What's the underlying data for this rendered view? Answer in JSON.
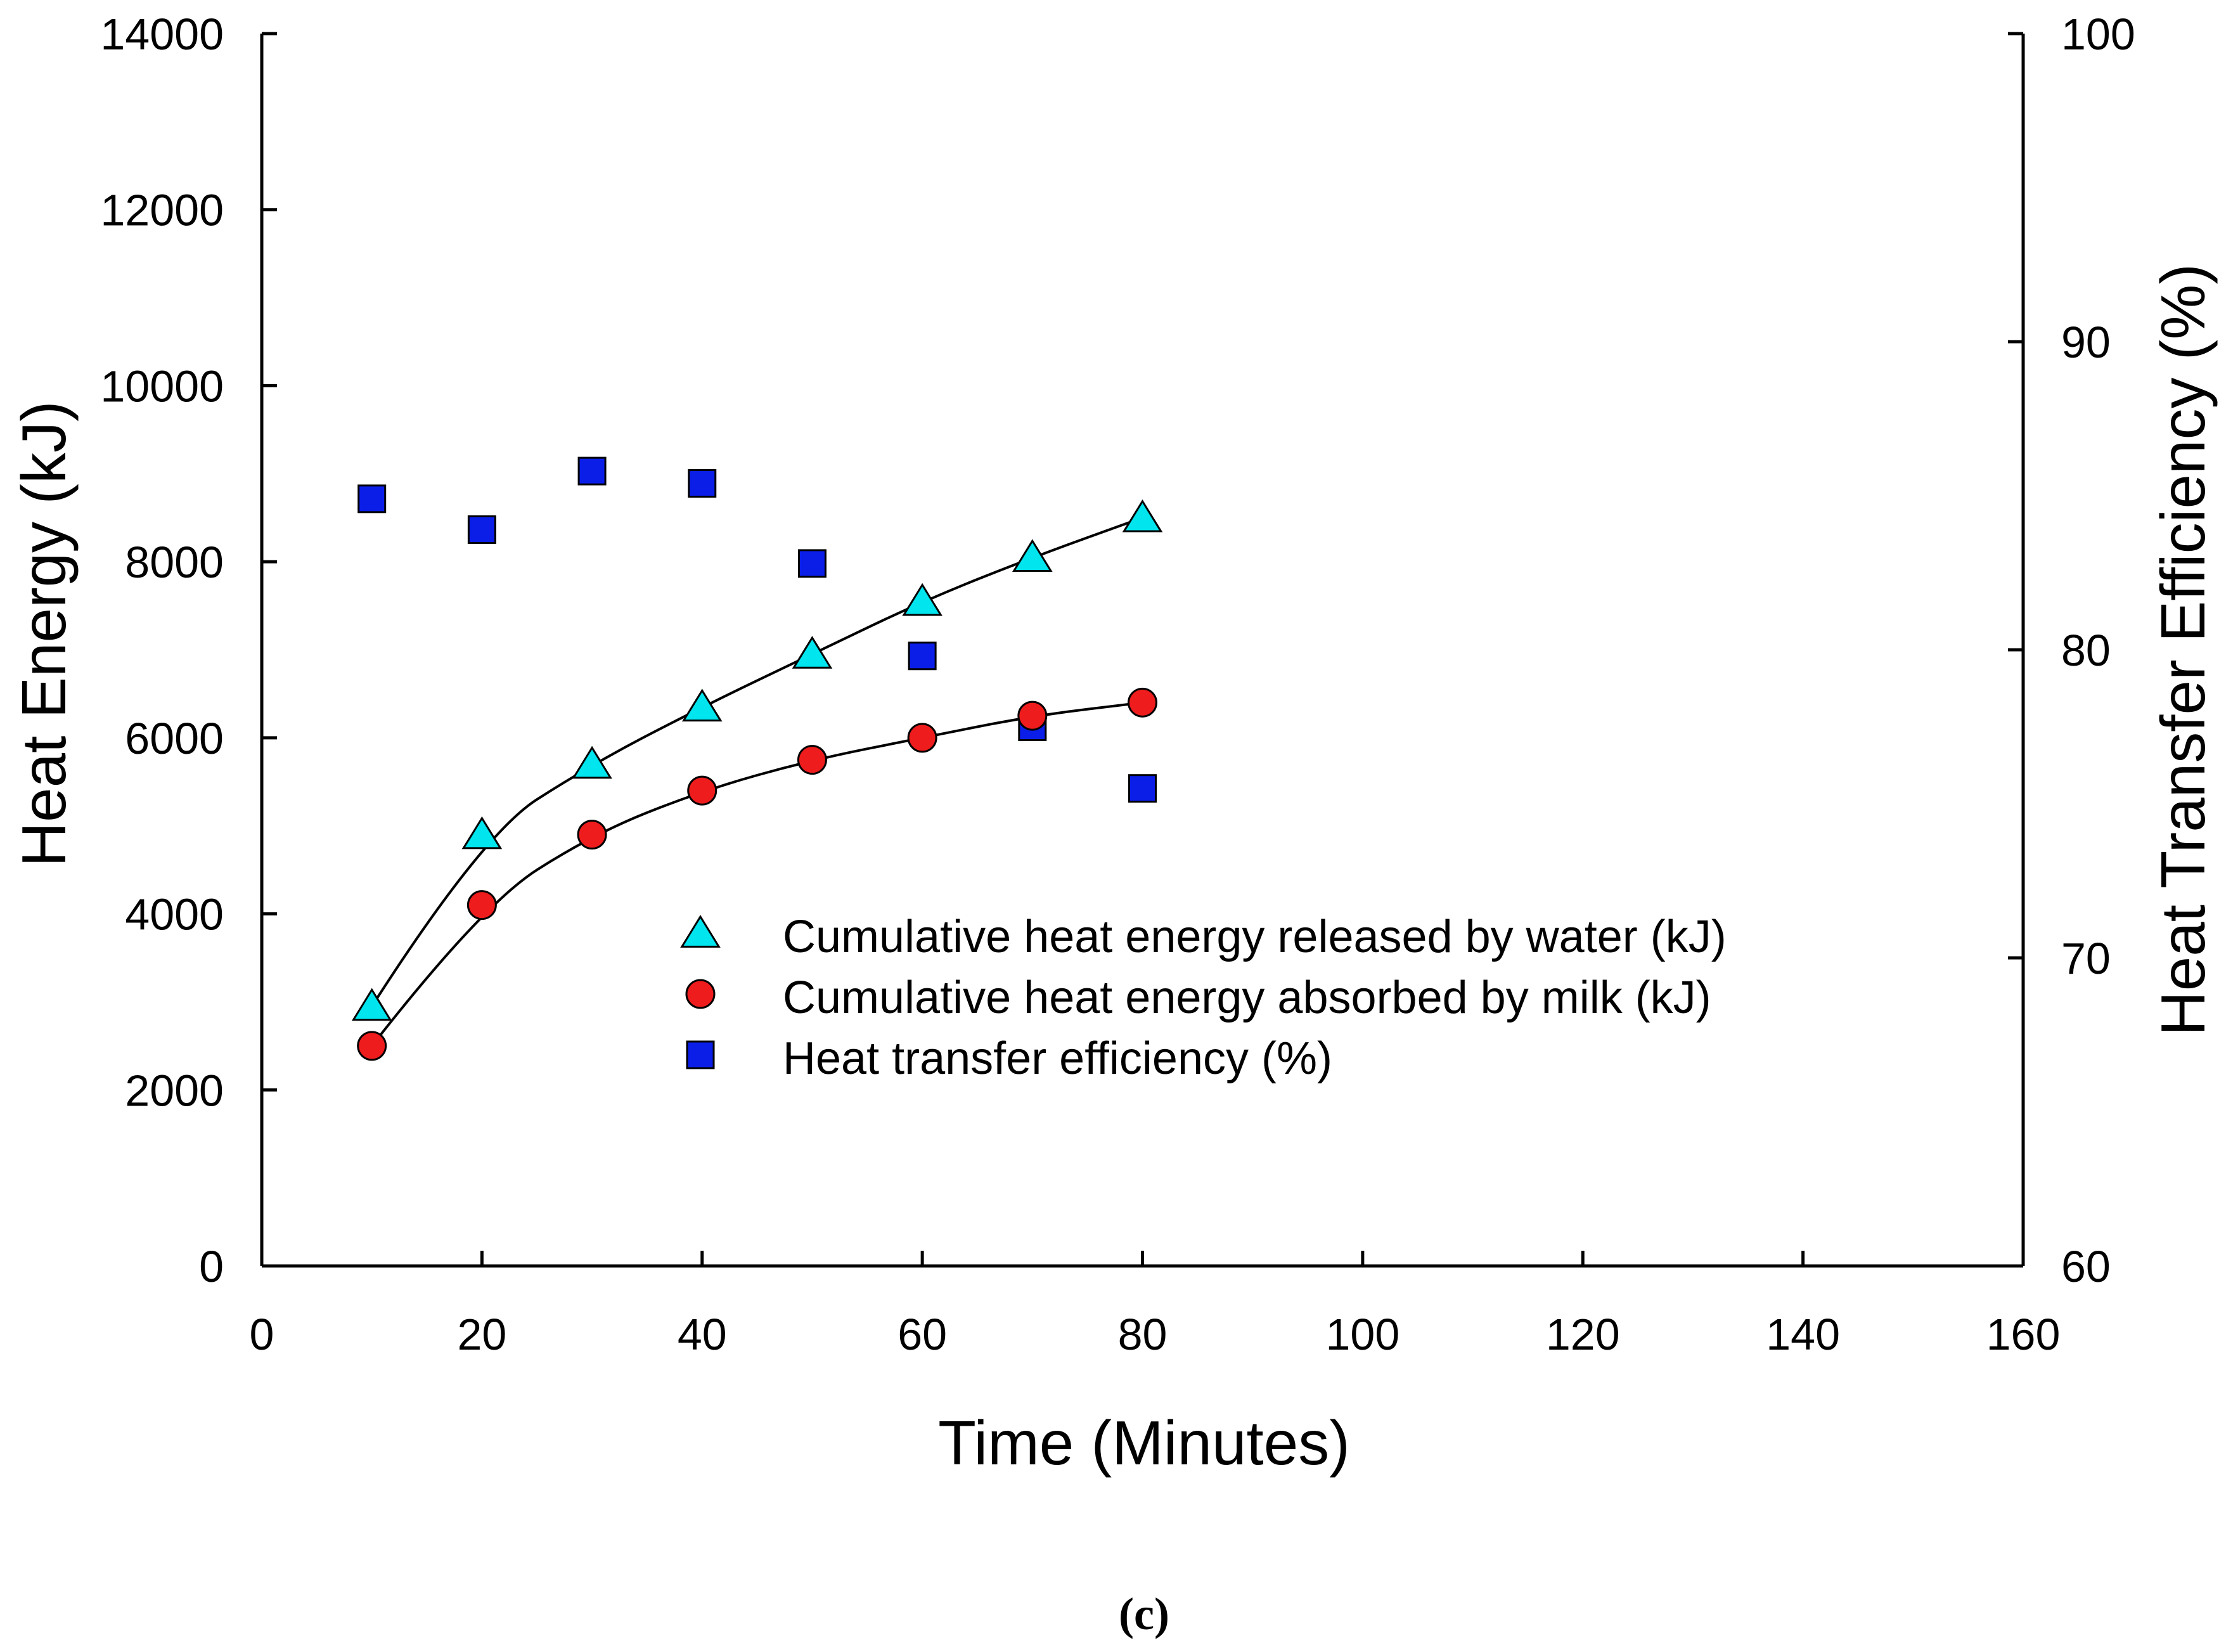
{
  "chart_data": {
    "type": "scatter",
    "x_label": "Time (Minutes)",
    "y_label_left": "Heat Energy (kJ)",
    "y_label_right": "Heat Transfer Efficiency (%)",
    "caption": "(c)",
    "xlim": [
      0,
      160
    ],
    "ylim_left": [
      0,
      14000
    ],
    "ylim_right": [
      60,
      100
    ],
    "x_ticks": [
      0,
      20,
      40,
      60,
      80,
      100,
      120,
      140,
      160
    ],
    "y_ticks_left": [
      0,
      2000,
      4000,
      6000,
      8000,
      10000,
      12000,
      14000
    ],
    "y_ticks_right": [
      60,
      70,
      80,
      90,
      100
    ],
    "legend_position": "center",
    "grid": false,
    "series": [
      {
        "name": "Cumulative heat energy released by water (kJ)",
        "axis": "left",
        "marker": "triangle",
        "color": "#00e5ee",
        "trend_line": true,
        "x": [
          10,
          20,
          30,
          40,
          50,
          60,
          70,
          80
        ],
        "y": [
          2950,
          4900,
          5700,
          6350,
          6950,
          7550,
          8050,
          8500
        ]
      },
      {
        "name": "Cumulative heat energy absorbed by milk (kJ)",
        "axis": "left",
        "marker": "circle",
        "color": "#ee1c1c",
        "trend_line": true,
        "x": [
          10,
          20,
          30,
          40,
          50,
          60,
          70,
          80
        ],
        "y": [
          2500,
          4100,
          4900,
          5400,
          5750,
          6000,
          6250,
          6400
        ]
      },
      {
        "name": "Heat transfer efficiency (%)",
        "axis": "right",
        "marker": "square",
        "color": "#0b1ee8",
        "trend_line": false,
        "x": [
          10,
          20,
          30,
          40,
          50,
          60,
          70,
          80
        ],
        "y": [
          84.9,
          83.9,
          85.8,
          85.4,
          82.8,
          79.8,
          77.5,
          75.5
        ]
      }
    ]
  }
}
